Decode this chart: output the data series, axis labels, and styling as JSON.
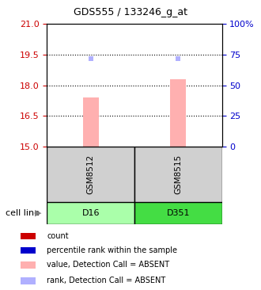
{
  "title": "GDS555 / 133246_g_at",
  "samples": [
    "GSM8512",
    "GSM8515"
  ],
  "cell_lines": [
    "D16",
    "D351"
  ],
  "cell_line_colors": [
    "#aaffaa",
    "#44dd44"
  ],
  "bar_values": [
    17.4,
    18.3
  ],
  "rank_values": [
    19.3,
    19.3
  ],
  "bar_color": "#ffb0b0",
  "rank_color": "#b0b0ff",
  "ylim_left": [
    15,
    21
  ],
  "ylim_right": [
    0,
    100
  ],
  "yticks_left": [
    15,
    16.5,
    18,
    19.5,
    21
  ],
  "yticks_right": [
    0,
    25,
    50,
    75,
    100
  ],
  "hlines": [
    16.5,
    18,
    19.5
  ],
  "left_tick_color": "#cc0000",
  "right_tick_color": "#0000cc",
  "legend_items": [
    {
      "color": "#cc0000",
      "label": "count"
    },
    {
      "color": "#0000cc",
      "label": "percentile rank within the sample"
    },
    {
      "color": "#ffb0b0",
      "label": "value, Detection Call = ABSENT"
    },
    {
      "color": "#b0b0ff",
      "label": "rank, Detection Call = ABSENT"
    }
  ]
}
